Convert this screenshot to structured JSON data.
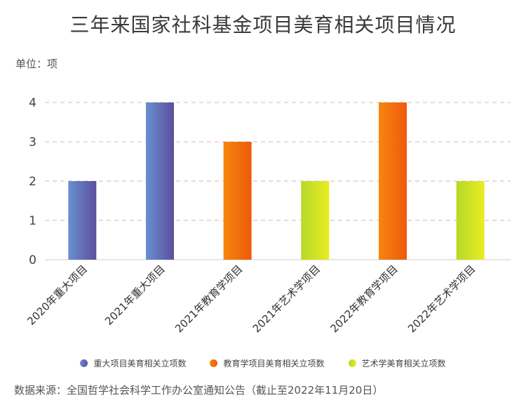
{
  "chart_data": {
    "type": "bar",
    "title": "三年来国家社科基金项目美育相关项目情况",
    "unit": "单位：项",
    "categories": [
      "2020年重大项目",
      "2021年重大项目",
      "2021年教育学项目",
      "2021年艺术学项目",
      "2022年教育学项目",
      "2022年艺术学项目"
    ],
    "values": [
      2,
      4,
      3,
      2,
      4,
      2
    ],
    "bar_series": [
      0,
      0,
      1,
      2,
      1,
      2
    ],
    "ylim": [
      0,
      4
    ],
    "yticks": [
      "0",
      "1",
      "2",
      "3",
      "4"
    ],
    "grid": true,
    "legend_position": "bottom",
    "series": [
      {
        "name": "重大项目美育相关立项数",
        "color_start": "#6a8fd0",
        "color_end": "#5b4f9e"
      },
      {
        "name": "教育学项目美育相关立项数",
        "color_start": "#f5860e",
        "color_end": "#ee5a0c"
      },
      {
        "name": "艺术学美育相关立项数",
        "color_start": "#b6d92a",
        "color_end": "#eaec22"
      }
    ],
    "source": "数据来源：全国哲学社会科学工作办公室通知公告（截止至2022年11月20日）"
  }
}
